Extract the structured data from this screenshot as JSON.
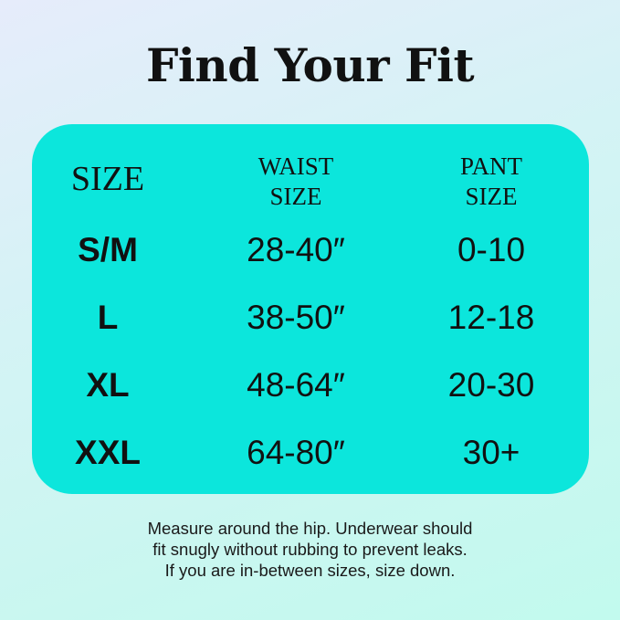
{
  "title": "Find Your Fit",
  "table": {
    "headers": [
      "SIZE",
      "WAIST\nSIZE",
      "PANT\nSIZE"
    ],
    "header_lines": {
      "waist": [
        "WAIST",
        "SIZE"
      ],
      "pant": [
        "PANT",
        "SIZE"
      ]
    },
    "rows": [
      {
        "size": "S/M",
        "waist": "28-40″",
        "pant": "0-10"
      },
      {
        "size": "L",
        "waist": "38-50″",
        "pant": "12-18"
      },
      {
        "size": "XL",
        "waist": "48-64″",
        "pant": "20-30"
      },
      {
        "size": "XXL",
        "waist": "64-80″",
        "pant": "30+"
      }
    ]
  },
  "note": {
    "lines": [
      "Measure around the hip. Underwear should",
      "fit snugly without rubbing to prevent leaks.",
      "If you are in-between sizes, size down."
    ]
  },
  "colors": {
    "card": "#0ce6dc",
    "text": "#111111"
  }
}
